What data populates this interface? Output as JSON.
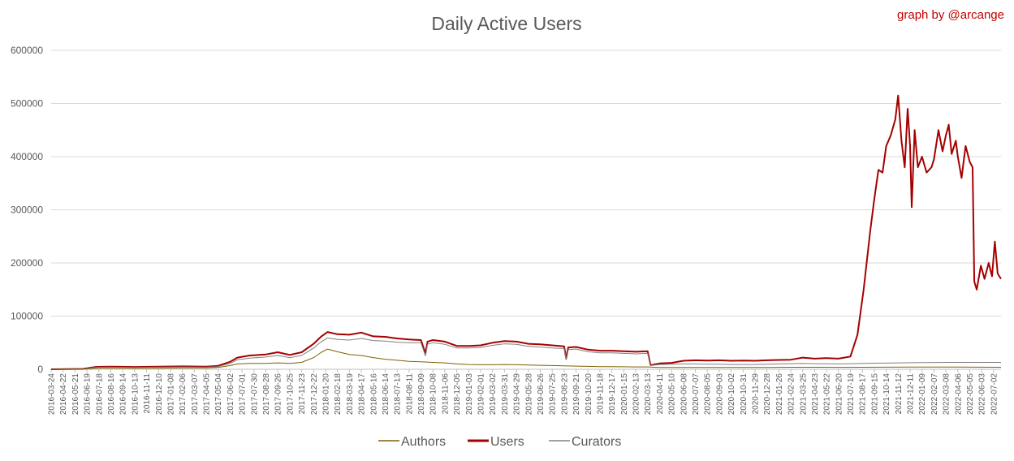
{
  "chart_data": {
    "type": "line",
    "title": "Daily Active Users",
    "credit": "graph by @arcange",
    "xlabel": "",
    "ylabel": "",
    "ylim": [
      0,
      600000
    ],
    "yticks": [
      "0",
      "100000",
      "200000",
      "300000",
      "400000",
      "500000",
      "600000"
    ],
    "grid": true,
    "legend_position": "bottom",
    "x_tick_labels": [
      "2016-03-24",
      "2016-04-22",
      "2016-05-21",
      "2016-06-19",
      "2016-07-18",
      "2016-08-16",
      "2016-09-14",
      "2016-10-13",
      "2016-11-11",
      "2016-12-10",
      "2017-01-08",
      "2017-02-06",
      "2017-03-07",
      "2017-04-05",
      "2017-05-04",
      "2017-06-02",
      "2017-07-01",
      "2017-07-30",
      "2017-08-28",
      "2017-09-26",
      "2017-10-25",
      "2017-11-23",
      "2017-12-22",
      "2018-01-20",
      "2018-02-18",
      "2018-03-19",
      "2018-04-17",
      "2018-05-16",
      "2018-06-14",
      "2018-07-13",
      "2018-08-11",
      "2018-09-09",
      "2018-10-08",
      "2018-11-06",
      "2018-12-05",
      "2019-01-03",
      "2019-02-01",
      "2019-03-02",
      "2019-03-31",
      "2019-04-29",
      "2019-05-28",
      "2019-06-26",
      "2019-07-25",
      "2019-08-23",
      "2019-09-21",
      "2019-10-20",
      "2019-11-18",
      "2019-12-17",
      "2020-01-15",
      "2020-02-13",
      "2020-03-13",
      "2020-04-11",
      "2020-05-10",
      "2020-06-08",
      "2020-07-07",
      "2020-08-05",
      "2020-09-03",
      "2020-10-02",
      "2020-10-31",
      "2020-11-29",
      "2020-12-28",
      "2021-01-26",
      "2021-02-24",
      "2021-03-25",
      "2021-04-23",
      "2021-05-22",
      "2021-06-20",
      "2021-07-19",
      "2021-08-17",
      "2021-09-15",
      "2021-10-14",
      "2021-11-12",
      "2021-12-11",
      "2022-01-09",
      "2022-02-07",
      "2022-03-08",
      "2022-04-06",
      "2022-05-05",
      "2022-06-03",
      "2022-07-02"
    ],
    "x_range": [
      "2016-03-24",
      "2022-07-20"
    ],
    "series": [
      {
        "name": "Users",
        "color": "#a50000",
        "points": [
          [
            "2016-03-24",
            0
          ],
          [
            "2016-06-10",
            800
          ],
          [
            "2016-07-10",
            4500
          ],
          [
            "2016-08-16",
            5000
          ],
          [
            "2016-10-13",
            4500
          ],
          [
            "2016-12-10",
            5000
          ],
          [
            "2017-02-06",
            5500
          ],
          [
            "2017-04-05",
            5000
          ],
          [
            "2017-05-04",
            6500
          ],
          [
            "2017-06-02",
            14000
          ],
          [
            "2017-06-20",
            22000
          ],
          [
            "2017-07-20",
            26000
          ],
          [
            "2017-08-28",
            28000
          ],
          [
            "2017-09-26",
            32000
          ],
          [
            "2017-10-25",
            27000
          ],
          [
            "2017-11-23",
            32000
          ],
          [
            "2017-12-22",
            48000
          ],
          [
            "2018-01-10",
            62000
          ],
          [
            "2018-01-25",
            70000
          ],
          [
            "2018-02-18",
            66000
          ],
          [
            "2018-03-19",
            65000
          ],
          [
            "2018-04-17",
            69000
          ],
          [
            "2018-05-16",
            62000
          ],
          [
            "2018-06-14",
            61000
          ],
          [
            "2018-07-13",
            58000
          ],
          [
            "2018-08-11",
            56000
          ],
          [
            "2018-09-09",
            55000
          ],
          [
            "2018-09-20",
            30000
          ],
          [
            "2018-09-25",
            52000
          ],
          [
            "2018-10-08",
            55000
          ],
          [
            "2018-11-06",
            52000
          ],
          [
            "2018-12-05",
            44000
          ],
          [
            "2019-01-03",
            44000
          ],
          [
            "2019-02-01",
            45000
          ],
          [
            "2019-03-02",
            50000
          ],
          [
            "2019-03-31",
            53000
          ],
          [
            "2019-04-29",
            52000
          ],
          [
            "2019-05-28",
            48000
          ],
          [
            "2019-06-26",
            47000
          ],
          [
            "2019-07-25",
            45000
          ],
          [
            "2019-08-23",
            43000
          ],
          [
            "2019-08-28",
            20000
          ],
          [
            "2019-09-02",
            41000
          ],
          [
            "2019-09-21",
            42000
          ],
          [
            "2019-10-20",
            37000
          ],
          [
            "2019-11-18",
            35000
          ],
          [
            "2019-12-17",
            35000
          ],
          [
            "2020-01-15",
            34000
          ],
          [
            "2020-02-13",
            33000
          ],
          [
            "2020-03-13",
            34000
          ],
          [
            "2020-03-20",
            8000
          ],
          [
            "2020-04-11",
            11000
          ],
          [
            "2020-05-10",
            12000
          ],
          [
            "2020-06-08",
            16000
          ],
          [
            "2020-07-07",
            17000
          ],
          [
            "2020-08-05",
            16500
          ],
          [
            "2020-09-03",
            17000
          ],
          [
            "2020-10-02",
            16000
          ],
          [
            "2020-10-31",
            16500
          ],
          [
            "2020-11-29",
            16000
          ],
          [
            "2020-12-28",
            17000
          ],
          [
            "2021-01-26",
            17500
          ],
          [
            "2021-02-24",
            18000
          ],
          [
            "2021-03-25",
            22000
          ],
          [
            "2021-04-23",
            20000
          ],
          [
            "2021-05-22",
            21000
          ],
          [
            "2021-06-20",
            20000
          ],
          [
            "2021-07-19",
            24000
          ],
          [
            "2021-08-05",
            65000
          ],
          [
            "2021-08-20",
            150000
          ],
          [
            "2021-09-05",
            260000
          ],
          [
            "2021-09-15",
            320000
          ],
          [
            "2021-09-25",
            375000
          ],
          [
            "2021-10-05",
            370000
          ],
          [
            "2021-10-14",
            420000
          ],
          [
            "2021-10-25",
            440000
          ],
          [
            "2021-11-05",
            470000
          ],
          [
            "2021-11-12",
            515000
          ],
          [
            "2021-11-20",
            430000
          ],
          [
            "2021-11-28",
            380000
          ],
          [
            "2021-12-05",
            490000
          ],
          [
            "2021-12-11",
            420000
          ],
          [
            "2021-12-15",
            305000
          ],
          [
            "2021-12-22",
            450000
          ],
          [
            "2021-12-30",
            380000
          ],
          [
            "2022-01-09",
            400000
          ],
          [
            "2022-01-20",
            370000
          ],
          [
            "2022-02-01",
            380000
          ],
          [
            "2022-02-07",
            395000
          ],
          [
            "2022-02-18",
            450000
          ],
          [
            "2022-02-28",
            410000
          ],
          [
            "2022-03-08",
            440000
          ],
          [
            "2022-03-15",
            460000
          ],
          [
            "2022-03-22",
            405000
          ],
          [
            "2022-04-01",
            430000
          ],
          [
            "2022-04-06",
            400000
          ],
          [
            "2022-04-15",
            360000
          ],
          [
            "2022-04-25",
            420000
          ],
          [
            "2022-05-05",
            390000
          ],
          [
            "2022-05-12",
            380000
          ],
          [
            "2022-05-16",
            165000
          ],
          [
            "2022-05-22",
            150000
          ],
          [
            "2022-06-01",
            195000
          ],
          [
            "2022-06-10",
            170000
          ],
          [
            "2022-06-20",
            200000
          ],
          [
            "2022-06-28",
            175000
          ],
          [
            "2022-07-05",
            240000
          ],
          [
            "2022-07-12",
            180000
          ],
          [
            "2022-07-20",
            170000
          ]
        ]
      },
      {
        "name": "Curators",
        "color": "#808080",
        "points": [
          [
            "2016-03-24",
            0
          ],
          [
            "2016-06-10",
            600
          ],
          [
            "2016-07-10",
            3500
          ],
          [
            "2016-08-16",
            4000
          ],
          [
            "2016-10-13",
            3500
          ],
          [
            "2016-12-10",
            4000
          ],
          [
            "2017-02-06",
            4200
          ],
          [
            "2017-04-05",
            4000
          ],
          [
            "2017-05-04",
            5000
          ],
          [
            "2017-06-02",
            11000
          ],
          [
            "2017-06-20",
            18000
          ],
          [
            "2017-07-20",
            21000
          ],
          [
            "2017-08-28",
            23000
          ],
          [
            "2017-09-26",
            26000
          ],
          [
            "2017-10-25",
            22000
          ],
          [
            "2017-11-23",
            26000
          ],
          [
            "2017-12-22",
            40000
          ],
          [
            "2018-01-10",
            52000
          ],
          [
            "2018-01-25",
            59000
          ],
          [
            "2018-02-18",
            56000
          ],
          [
            "2018-03-19",
            55000
          ],
          [
            "2018-04-17",
            58000
          ],
          [
            "2018-05-16",
            54000
          ],
          [
            "2018-06-14",
            53000
          ],
          [
            "2018-07-13",
            51000
          ],
          [
            "2018-08-11",
            50000
          ],
          [
            "2018-09-09",
            50000
          ],
          [
            "2018-09-20",
            25000
          ],
          [
            "2018-09-25",
            47000
          ],
          [
            "2018-10-08",
            50000
          ],
          [
            "2018-11-06",
            47000
          ],
          [
            "2018-12-05",
            40000
          ],
          [
            "2019-01-03",
            40000
          ],
          [
            "2019-02-01",
            41000
          ],
          [
            "2019-03-02",
            45000
          ],
          [
            "2019-03-31",
            48000
          ],
          [
            "2019-04-29",
            47000
          ],
          [
            "2019-05-28",
            43000
          ],
          [
            "2019-06-26",
            42000
          ],
          [
            "2019-07-25",
            40000
          ],
          [
            "2019-08-23",
            39000
          ],
          [
            "2019-08-28",
            18000
          ],
          [
            "2019-09-02",
            37000
          ],
          [
            "2019-09-21",
            38000
          ],
          [
            "2019-10-20",
            33000
          ],
          [
            "2019-11-18",
            31000
          ],
          [
            "2019-12-17",
            31000
          ],
          [
            "2020-01-15",
            30000
          ],
          [
            "2020-02-13",
            29000
          ],
          [
            "2020-03-13",
            30000
          ],
          [
            "2020-03-20",
            7000
          ],
          [
            "2020-04-11",
            9000
          ],
          [
            "2020-05-10",
            9500
          ],
          [
            "2020-06-08",
            10000
          ],
          [
            "2020-07-07",
            10000
          ],
          [
            "2020-08-05",
            9500
          ],
          [
            "2020-09-03",
            9500
          ],
          [
            "2020-10-02",
            9000
          ],
          [
            "2020-10-31",
            9000
          ],
          [
            "2020-11-29",
            9000
          ],
          [
            "2020-12-28",
            9500
          ],
          [
            "2021-01-26",
            10000
          ],
          [
            "2021-02-24",
            10500
          ],
          [
            "2021-03-25",
            11000
          ],
          [
            "2021-04-23",
            10500
          ],
          [
            "2021-05-22",
            10500
          ],
          [
            "2021-06-20",
            10000
          ],
          [
            "2021-07-19",
            10500
          ],
          [
            "2021-09-15",
            11500
          ],
          [
            "2021-11-12",
            12000
          ],
          [
            "2022-01-09",
            12500
          ],
          [
            "2022-03-08",
            13000
          ],
          [
            "2022-05-05",
            13000
          ],
          [
            "2022-07-20",
            13000
          ]
        ]
      },
      {
        "name": "Authors",
        "color": "#7f6000",
        "points": [
          [
            "2016-03-24",
            0
          ],
          [
            "2016-06-10",
            400
          ],
          [
            "2016-07-10",
            2000
          ],
          [
            "2016-08-16",
            2200
          ],
          [
            "2016-10-13",
            2000
          ],
          [
            "2016-12-10",
            2200
          ],
          [
            "2017-02-06",
            2500
          ],
          [
            "2017-04-05",
            2500
          ],
          [
            "2017-05-04",
            3500
          ],
          [
            "2017-06-02",
            7000
          ],
          [
            "2017-06-20",
            10000
          ],
          [
            "2017-07-20",
            11000
          ],
          [
            "2017-08-28",
            11000
          ],
          [
            "2017-09-26",
            12000
          ],
          [
            "2017-10-25",
            11000
          ],
          [
            "2017-11-23",
            13000
          ],
          [
            "2017-12-22",
            22000
          ],
          [
            "2018-01-10",
            32000
          ],
          [
            "2018-01-25",
            38000
          ],
          [
            "2018-02-18",
            33000
          ],
          [
            "2018-03-19",
            28000
          ],
          [
            "2018-04-17",
            26000
          ],
          [
            "2018-05-16",
            22000
          ],
          [
            "2018-06-14",
            19000
          ],
          [
            "2018-07-13",
            17000
          ],
          [
            "2018-08-11",
            15000
          ],
          [
            "2018-09-09",
            14000
          ],
          [
            "2018-10-08",
            13000
          ],
          [
            "2018-11-06",
            12000
          ],
          [
            "2018-12-05",
            10000
          ],
          [
            "2019-01-03",
            9000
          ],
          [
            "2019-02-01",
            8500
          ],
          [
            "2019-03-02",
            8500
          ],
          [
            "2019-03-31",
            9000
          ],
          [
            "2019-04-29",
            8500
          ],
          [
            "2019-05-28",
            8000
          ],
          [
            "2019-06-26",
            7500
          ],
          [
            "2019-07-25",
            7000
          ],
          [
            "2019-08-23",
            6500
          ],
          [
            "2019-09-21",
            6000
          ],
          [
            "2019-10-20",
            5500
          ],
          [
            "2019-11-18",
            5000
          ],
          [
            "2019-12-17",
            5000
          ],
          [
            "2020-01-15",
            4800
          ],
          [
            "2020-02-13",
            4500
          ],
          [
            "2020-03-13",
            4500
          ],
          [
            "2020-04-11",
            3500
          ],
          [
            "2020-06-08",
            3500
          ],
          [
            "2020-08-05",
            3500
          ],
          [
            "2020-10-02",
            3300
          ],
          [
            "2020-12-28",
            3500
          ],
          [
            "2021-02-24",
            3800
          ],
          [
            "2021-04-23",
            3800
          ],
          [
            "2021-06-20",
            3700
          ],
          [
            "2021-08-17",
            3800
          ],
          [
            "2021-10-14",
            4000
          ],
          [
            "2021-12-11",
            4200
          ],
          [
            "2022-02-07",
            4300
          ],
          [
            "2022-04-06",
            4200
          ],
          [
            "2022-06-03",
            4000
          ],
          [
            "2022-07-20",
            3800
          ]
        ]
      }
    ],
    "legend": [
      "Authors",
      "Users",
      "Curators"
    ]
  }
}
